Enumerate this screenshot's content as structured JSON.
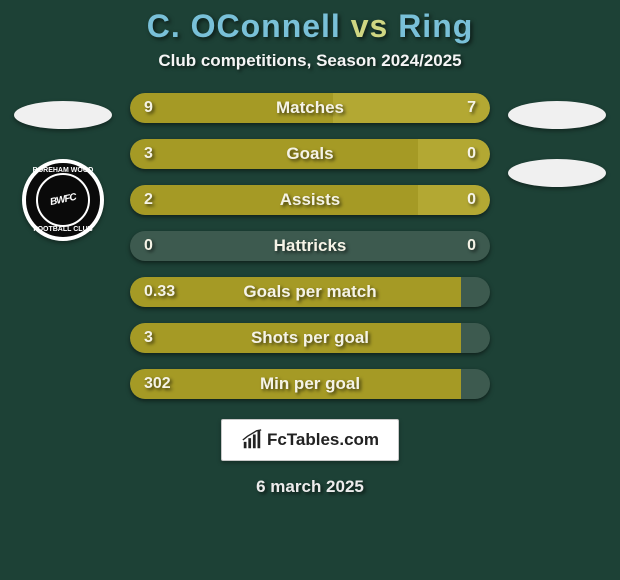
{
  "bg_color": "#1d4136",
  "header": {
    "player1": "C. OConnell",
    "player1_color": "#79c0d8",
    "vs": " vs ",
    "vs_color": "#cfd682",
    "player2": "Ring",
    "player2_color": "#79c0d8",
    "subtitle": "Club competitions, Season 2024/2025"
  },
  "left_side": {
    "flag_bg": "#f1f1f1",
    "club_top": "BOREHAM WOOD",
    "club_center": "BWFC",
    "club_bottom": "FOOTBALL CLUB"
  },
  "right_side": {
    "flag_bg": "#f1f1f1",
    "club_bg": "#f1f1f1"
  },
  "bar_style": {
    "p1_color": "#a59a25",
    "p2_color": "#b3a833",
    "track_color": "#3d5a4f",
    "height": 30
  },
  "stats": [
    {
      "label": "Matches",
      "left_val": "9",
      "right_val": "7",
      "left_pct": 56.25,
      "right_pct": 43.75,
      "right_fill": true
    },
    {
      "label": "Goals",
      "left_val": "3",
      "right_val": "0",
      "left_pct": 80.0,
      "right_pct": 20.0,
      "right_fill": true
    },
    {
      "label": "Assists",
      "left_val": "2",
      "right_val": "0",
      "left_pct": 80.0,
      "right_pct": 20.0,
      "right_fill": true
    },
    {
      "label": "Hattricks",
      "left_val": "0",
      "right_val": "0",
      "left_pct": 0.0,
      "right_pct": 0.0,
      "right_fill": false
    },
    {
      "label": "Goals per match",
      "left_val": "0.33",
      "right_val": "",
      "left_pct": 92.0,
      "right_pct": 0.0,
      "right_fill": false
    },
    {
      "label": "Shots per goal",
      "left_val": "3",
      "right_val": "",
      "left_pct": 92.0,
      "right_pct": 0.0,
      "right_fill": false
    },
    {
      "label": "Min per goal",
      "left_val": "302",
      "right_val": "",
      "left_pct": 92.0,
      "right_pct": 0.0,
      "right_fill": false
    }
  ],
  "brand": {
    "text": "FcTables.com"
  },
  "footer": {
    "date": "6 march 2025"
  }
}
